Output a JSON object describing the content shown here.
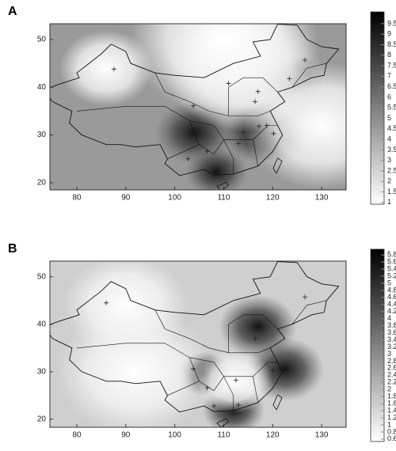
{
  "panels": [
    {
      "label": "A",
      "x_axis": {
        "lim": [
          74.5,
          135
        ],
        "ticks": [
          80,
          90,
          100,
          110,
          120,
          130
        ]
      },
      "y_axis": {
        "lim": [
          18.5,
          53.3
        ],
        "ticks": [
          20,
          30,
          40,
          50
        ]
      },
      "colorbar": {
        "lim": [
          0.92,
          10.06
        ],
        "ticks": [
          1,
          1.5,
          2,
          2.5,
          3,
          3.5,
          4,
          4.5,
          5,
          5.5,
          6,
          6.5,
          7,
          7.5,
          8,
          8.5,
          9,
          9.5
        ]
      }
    },
    {
      "label": "B",
      "x_axis": {
        "lim": [
          74.5,
          135
        ],
        "ticks": [
          80,
          90,
          100,
          110,
          120,
          130
        ]
      },
      "y_axis": {
        "lim": [
          18.3,
          53.3
        ],
        "ticks": [
          20,
          30,
          40,
          50
        ]
      },
      "colorbar": {
        "lim": [
          0.53,
          5.96
        ],
        "ticks": [
          0.6,
          0.8,
          1,
          1.2,
          1.4,
          1.6,
          1.8,
          2,
          2.2,
          2.4,
          2.6,
          2.8,
          3,
          3.2,
          3.4,
          3.6,
          3.8,
          4,
          4.2,
          4.4,
          4.6,
          4.8,
          5,
          5.2,
          5.4,
          5.6,
          5.8
        ]
      }
    }
  ]
}
